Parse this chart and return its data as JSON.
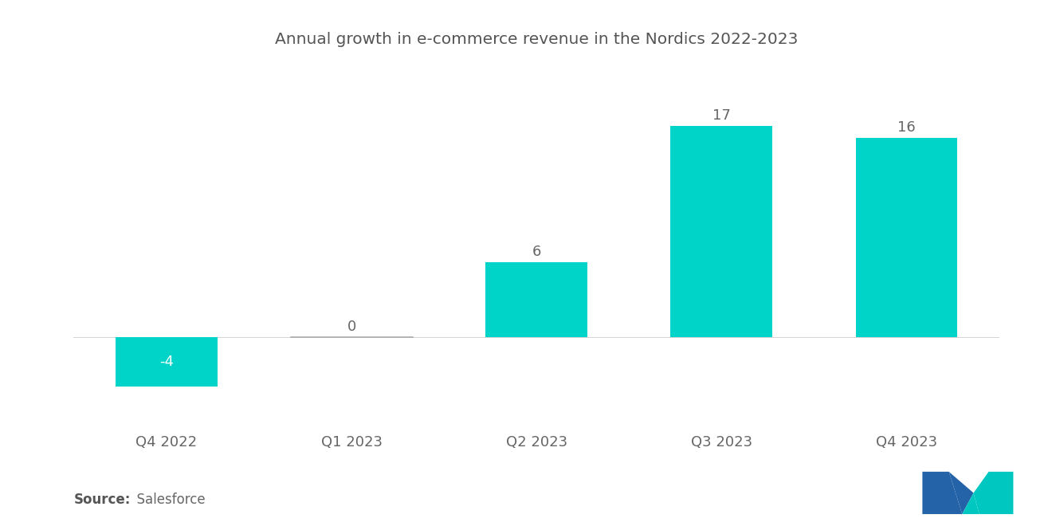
{
  "title": "Annual growth in e-commerce revenue in the Nordics 2022-2023",
  "categories": [
    "Q4 2022",
    "Q1 2023",
    "Q2 2023",
    "Q3 2023",
    "Q4 2023"
  ],
  "values": [
    -4,
    0,
    6,
    17,
    16
  ],
  "bar_color": "#00D4C8",
  "background_color": "#ffffff",
  "title_fontsize": 14.5,
  "label_fontsize": 13,
  "tick_fontsize": 13,
  "source_bold": "Source:",
  "source_normal": "  Salesforce",
  "source_fontsize": 12,
  "ylim": [
    -7,
    22
  ],
  "bar_width": 0.55,
  "logo_left_color": "#2563a8",
  "logo_right_color": "#00c8c0"
}
